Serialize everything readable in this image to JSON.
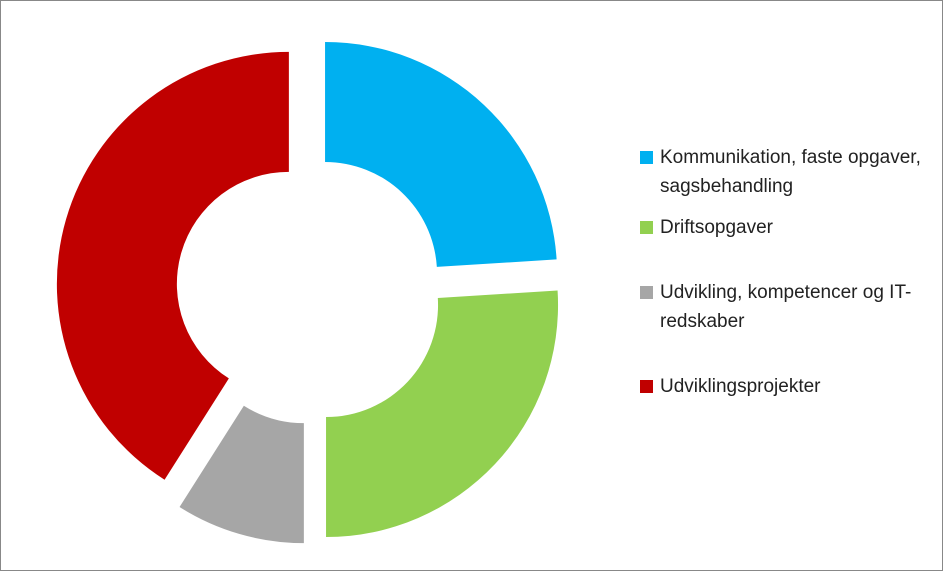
{
  "chart_data": {
    "type": "donut",
    "categories": [
      "Kommunikation, faste opgaver, sagsbehandling",
      "Driftsopgaver",
      "Udvikling, kompetencer og IT- redskaber",
      "Udviklingsprojekter"
    ],
    "values": [
      24,
      26,
      9,
      41
    ],
    "colors": [
      "#00b0f0",
      "#92d050",
      "#a6a6a6",
      "#c00000"
    ]
  }
}
